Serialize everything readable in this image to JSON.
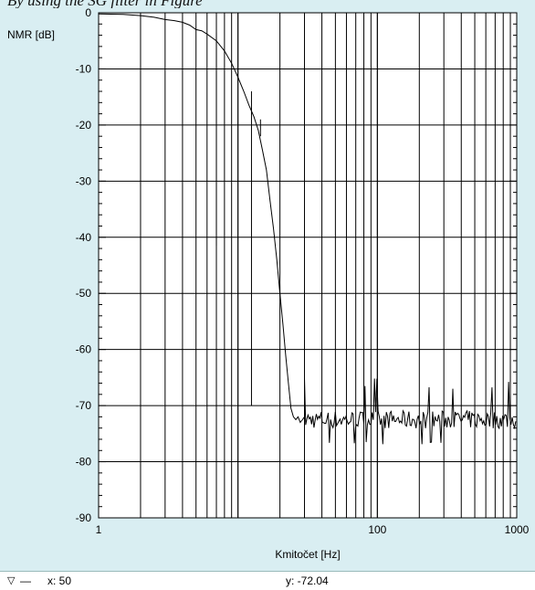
{
  "caption": "By using the SG filter in Figure",
  "chart_data": {
    "type": "line",
    "ylabel": "NMR [dB]",
    "xlabel": "Kmitočet [Hz]",
    "xscale": "log",
    "xlim": [
      1,
      1000
    ],
    "ylim": [
      -90,
      0
    ],
    "grid": true,
    "x_ticks": [
      "1",
      "100",
      "1000"
    ],
    "y_ticks": [
      "0",
      "-10",
      "-20",
      "-30",
      "-40",
      "-50",
      "-60",
      "-70",
      "-80",
      "-90"
    ],
    "line_color": "#000000",
    "curve": {
      "x": [
        1,
        1.5,
        2,
        2.5,
        3,
        3.5,
        4,
        4.5,
        5,
        5.5,
        6,
        7,
        8,
        9,
        10,
        11,
        12,
        13,
        14,
        15,
        16,
        17,
        18,
        19,
        20,
        21,
        22,
        23,
        24,
        25,
        26,
        27,
        28,
        29,
        30
      ],
      "y": [
        -0.2,
        -0.3,
        -0.5,
        -0.8,
        -1.2,
        -1.4,
        -1.7,
        -2.2,
        -3.0,
        -3.2,
        -3.8,
        -5.0,
        -6.8,
        -9.0,
        -11.5,
        -14.0,
        -16.5,
        -18.5,
        -21.0,
        -24.5,
        -28.0,
        -33.5,
        -38.5,
        -44.0,
        -50.0,
        -55.5,
        -61.0,
        -66.0,
        -70.5,
        -72.0,
        -72.5,
        -72.0,
        -73.0,
        -72.5,
        -72.0
      ]
    },
    "spikes": [
      {
        "x": 7.0,
        "y_from": -3.5,
        "y_to": -41.5
      },
      {
        "x": 12.5,
        "y_from": -14.0,
        "y_to": -70.0
      },
      {
        "x": 14.5,
        "y_from": -19.0,
        "y_to": -22.0
      }
    ],
    "noise_floor": {
      "x_start": 30,
      "x_end": 1000,
      "mean": -72.5,
      "min": -76.5,
      "max": -67.0
    }
  },
  "status": {
    "marker_icon": "▽",
    "line_icon": "—",
    "x_readout": "x: 50",
    "y_readout": "y: -72.04"
  }
}
